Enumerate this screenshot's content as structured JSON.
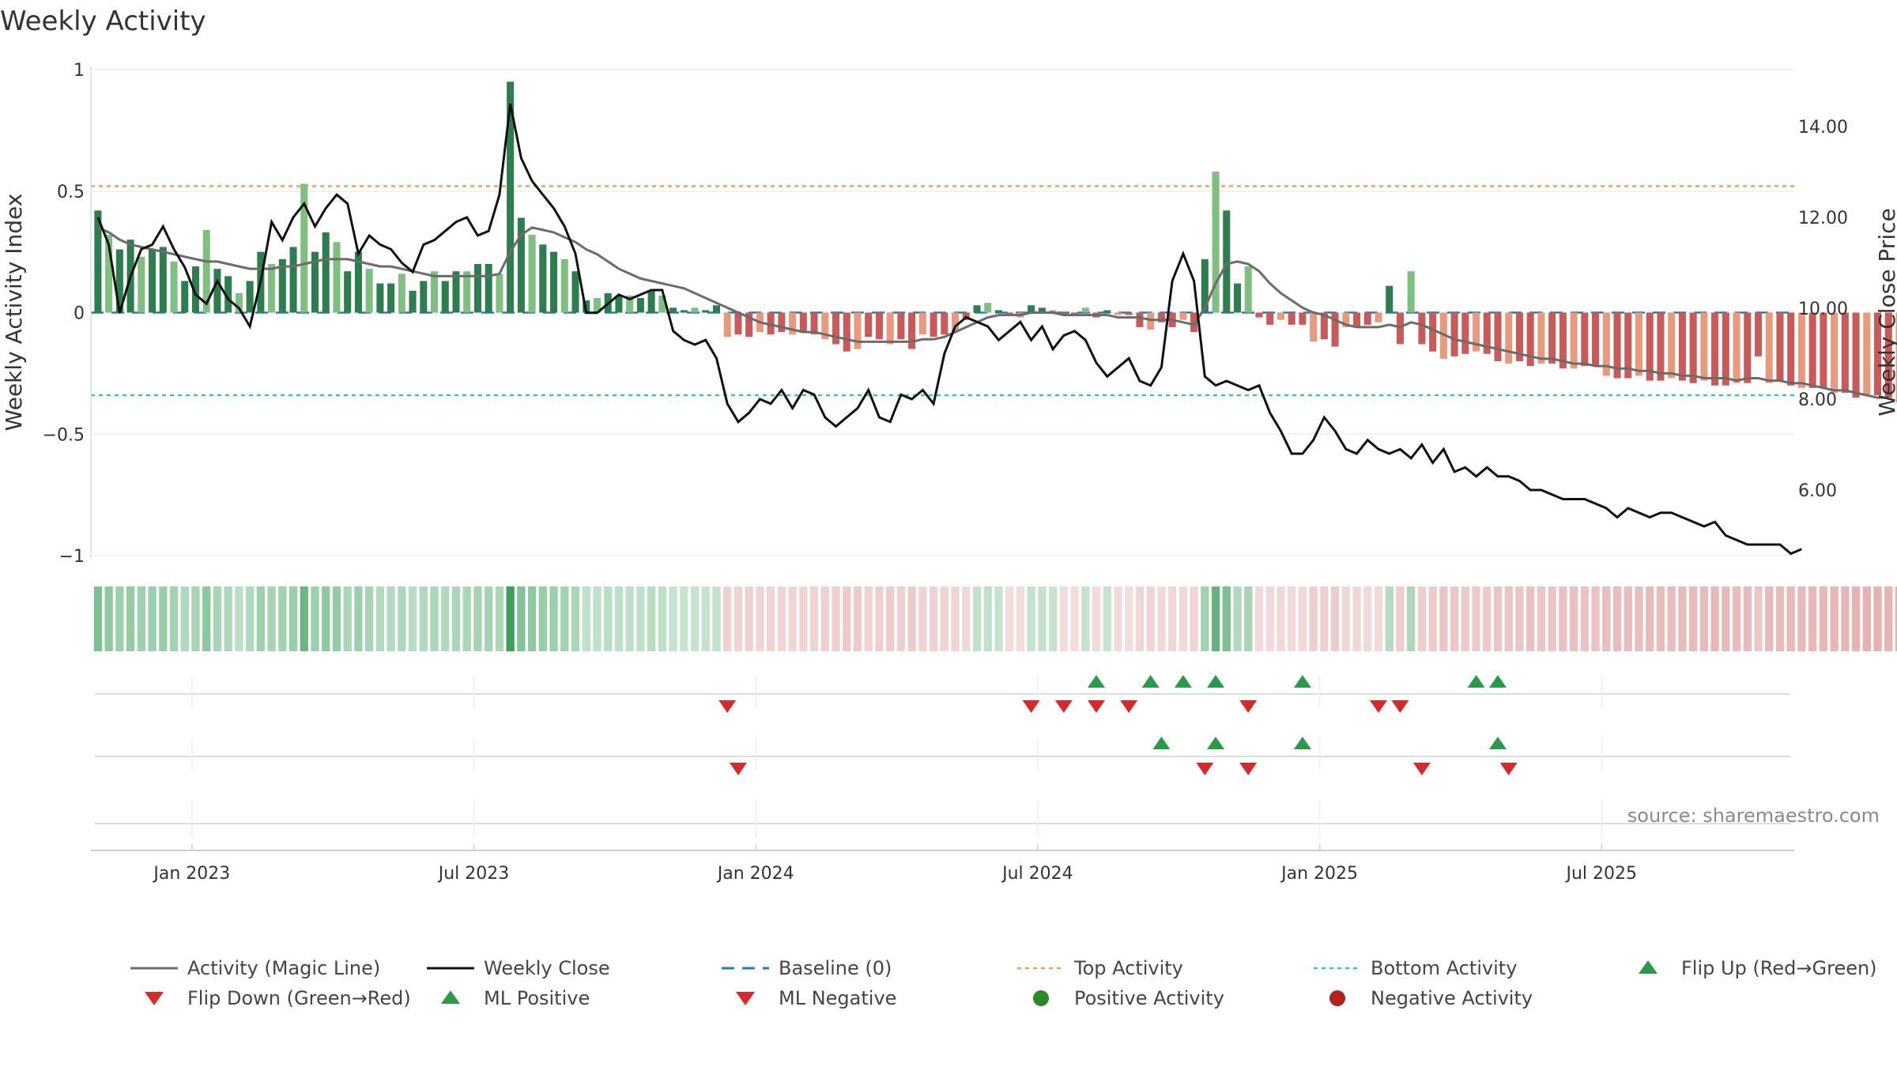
{
  "chart_data": {
    "type": "bar",
    "title": "Weekly Activity",
    "ylabel_left": "Weekly Activity Index",
    "ylabel_right": "Weekly Close Price",
    "ylim_left": [
      -1,
      1
    ],
    "ylim_right": [
      4.5,
      15.25
    ],
    "yticks_left": [
      1,
      0.5,
      0,
      -0.5,
      -1
    ],
    "yticks_left_labels": [
      "1",
      "0.5",
      "0",
      "−0.5",
      "−1"
    ],
    "yticks_right": [
      14,
      12,
      10,
      8,
      6
    ],
    "yticks_right_labels": [
      "14.00",
      "12.00",
      "10.00",
      "8.00",
      "6.00"
    ],
    "x_range_months": [
      -2.15,
      34.1
    ],
    "x_ticks": [
      {
        "label": "Jan 2023",
        "m": 0
      },
      {
        "label": "Jul 2023",
        "m": 6
      },
      {
        "label": "Jan 2024",
        "m": 12
      },
      {
        "label": "Jul 2024",
        "m": 18
      },
      {
        "label": "Jan 2025",
        "m": 24
      },
      {
        "label": "Jul 2025",
        "m": 30
      }
    ],
    "week_start_month": -2.0,
    "weeks_per_month": 4.33,
    "reference_lines": {
      "baseline": 0,
      "top_activity": 0.52,
      "bottom_activity": -0.34
    },
    "activity": [
      0.42,
      0.32,
      0.26,
      0.3,
      0.23,
      0.26,
      0.27,
      0.21,
      0.13,
      0.19,
      0.34,
      0.18,
      0.15,
      0.08,
      0.13,
      0.25,
      0.2,
      0.22,
      0.27,
      0.53,
      0.25,
      0.33,
      0.29,
      0.17,
      0.25,
      0.18,
      0.12,
      0.12,
      0.16,
      0.09,
      0.13,
      0.17,
      0.13,
      0.17,
      0.17,
      0.2,
      0.2,
      0.16,
      0.95,
      0.39,
      0.32,
      0.28,
      0.25,
      0.22,
      0.17,
      0.05,
      0.06,
      0.08,
      0.07,
      0.07,
      0.06,
      0.09,
      0.07,
      0.02,
      0.01,
      0.02,
      0.01,
      0.03,
      -0.1,
      -0.09,
      -0.1,
      -0.08,
      -0.09,
      -0.08,
      -0.09,
      -0.08,
      -0.09,
      -0.11,
      -0.13,
      -0.16,
      -0.15,
      -0.1,
      -0.11,
      -0.13,
      -0.11,
      -0.15,
      -0.09,
      -0.1,
      -0.09,
      -0.08,
      -0.03,
      0.03,
      0.04,
      0.01,
      -0.01,
      -0.02,
      0.03,
      0.02,
      0.01,
      -0.01,
      -0.01,
      0.02,
      -0.02,
      0.01,
      -0.01,
      -0.01,
      -0.06,
      -0.07,
      -0.04,
      -0.06,
      -0.03,
      -0.08,
      0.22,
      0.58,
      0.42,
      0.12,
      0.19,
      -0.02,
      -0.05,
      -0.03,
      -0.05,
      -0.05,
      -0.12,
      -0.11,
      -0.14,
      -0.06,
      -0.06,
      -0.05,
      -0.04,
      0.11,
      -0.13,
      0.17,
      -0.13,
      -0.16,
      -0.19,
      -0.18,
      -0.17,
      -0.16,
      -0.17,
      -0.2,
      -0.21,
      -0.2,
      -0.22,
      -0.21,
      -0.21,
      -0.23,
      -0.23,
      -0.22,
      -0.22,
      -0.26,
      -0.27,
      -0.27,
      -0.26,
      -0.28,
      -0.28,
      -0.27,
      -0.28,
      -0.29,
      -0.28,
      -0.3,
      -0.3,
      -0.29,
      -0.29,
      -0.18,
      -0.29,
      -0.28,
      -0.3,
      -0.31,
      -0.31,
      -0.31,
      -0.33,
      -0.33,
      -0.35,
      -0.34,
      -0.34,
      -0.35,
      -0.37
    ],
    "price": [
      12.0,
      11.4,
      9.9,
      10.7,
      11.3,
      11.4,
      11.8,
      11.3,
      10.9,
      10.3,
      10.1,
      10.6,
      10.2,
      10.0,
      9.6,
      10.6,
      11.9,
      11.5,
      12.0,
      12.3,
      11.8,
      12.2,
      12.5,
      12.3,
      11.2,
      11.6,
      11.4,
      11.3,
      11.0,
      10.8,
      11.4,
      11.5,
      11.7,
      11.9,
      12.0,
      11.6,
      11.7,
      12.5,
      14.5,
      13.3,
      12.8,
      12.5,
      12.2,
      11.8,
      11.2,
      9.9,
      9.9,
      10.1,
      10.3,
      10.2,
      10.3,
      10.4,
      10.4,
      9.5,
      9.3,
      9.2,
      9.3,
      8.9,
      7.9,
      7.5,
      7.7,
      8.0,
      7.9,
      8.2,
      7.8,
      8.2,
      8.1,
      7.6,
      7.4,
      7.6,
      7.8,
      8.2,
      7.6,
      7.5,
      8.1,
      8.0,
      8.2,
      7.9,
      9.0,
      9.6,
      9.8,
      9.7,
      9.6,
      9.3,
      9.5,
      9.7,
      9.3,
      9.6,
      9.1,
      9.4,
      9.5,
      9.3,
      8.8,
      8.5,
      8.7,
      8.9,
      8.4,
      8.3,
      8.7,
      10.6,
      11.2,
      10.6,
      8.5,
      8.3,
      8.4,
      8.3,
      8.2,
      8.3,
      7.7,
      7.3,
      6.8,
      6.8,
      7.1,
      7.6,
      7.3,
      6.9,
      6.8,
      7.1,
      6.9,
      6.8,
      6.9,
      6.7,
      7.0,
      6.6,
      6.9,
      6.4,
      6.5,
      6.3,
      6.5,
      6.3,
      6.3,
      6.2,
      6.0,
      6.0,
      5.9,
      5.8,
      5.8,
      5.8,
      5.7,
      5.6,
      5.4,
      5.6,
      5.5,
      5.4,
      5.5,
      5.5,
      5.4,
      5.3,
      5.2,
      5.3,
      5.0,
      4.9,
      4.8,
      4.8,
      4.8,
      4.8,
      4.6,
      4.7
    ],
    "magic_line": [
      0.35,
      0.33,
      0.3,
      0.28,
      0.27,
      0.26,
      0.25,
      0.24,
      0.23,
      0.22,
      0.21,
      0.21,
      0.2,
      0.19,
      0.18,
      0.18,
      0.18,
      0.19,
      0.19,
      0.2,
      0.21,
      0.22,
      0.22,
      0.22,
      0.21,
      0.2,
      0.19,
      0.19,
      0.18,
      0.17,
      0.16,
      0.15,
      0.15,
      0.15,
      0.15,
      0.15,
      0.15,
      0.16,
      0.25,
      0.32,
      0.35,
      0.34,
      0.33,
      0.31,
      0.29,
      0.26,
      0.24,
      0.21,
      0.18,
      0.16,
      0.14,
      0.13,
      0.12,
      0.11,
      0.1,
      0.08,
      0.06,
      0.04,
      0.02,
      0.0,
      -0.02,
      -0.04,
      -0.05,
      -0.06,
      -0.07,
      -0.08,
      -0.08,
      -0.09,
      -0.1,
      -0.11,
      -0.12,
      -0.12,
      -0.12,
      -0.12,
      -0.12,
      -0.12,
      -0.11,
      -0.11,
      -0.1,
      -0.08,
      -0.06,
      -0.04,
      -0.02,
      -0.01,
      -0.01,
      -0.01,
      0.0,
      0.0,
      0.0,
      -0.01,
      -0.01,
      -0.01,
      -0.01,
      -0.01,
      -0.02,
      -0.02,
      -0.02,
      -0.03,
      -0.03,
      -0.03,
      -0.04,
      -0.05,
      0.02,
      0.12,
      0.2,
      0.21,
      0.2,
      0.17,
      0.12,
      0.08,
      0.05,
      0.02,
      0.0,
      -0.01,
      -0.03,
      -0.05,
      -0.06,
      -0.06,
      -0.06,
      -0.05,
      -0.06,
      -0.04,
      -0.05,
      -0.07,
      -0.09,
      -0.11,
      -0.12,
      -0.13,
      -0.14,
      -0.15,
      -0.16,
      -0.17,
      -0.18,
      -0.19,
      -0.19,
      -0.2,
      -0.21,
      -0.21,
      -0.22,
      -0.22,
      -0.23,
      -0.23,
      -0.24,
      -0.24,
      -0.25,
      -0.25,
      -0.26,
      -0.26,
      -0.27,
      -0.27,
      -0.27,
      -0.28,
      -0.27,
      -0.27,
      -0.28,
      -0.28,
      -0.29,
      -0.29,
      -0.3,
      -0.31,
      -0.32,
      -0.32,
      -0.33,
      -0.34,
      -0.35,
      -0.35
    ],
    "signal_rows": [
      {
        "name": "Flip Up (Red→Green)",
        "kind": "up",
        "weeks": [
          92,
          97,
          100,
          103,
          111,
          127,
          129
        ]
      },
      {
        "name": "Flip Down (Green→Red)",
        "kind": "down",
        "weeks": [
          58,
          86,
          89,
          92,
          95,
          106,
          118,
          120
        ]
      },
      {
        "name": "ML Positive",
        "kind": "up",
        "weeks": [
          98,
          103,
          111,
          129
        ]
      },
      {
        "name": "ML Negative",
        "kind": "down",
        "weeks": [
          59,
          102,
          106,
          122,
          130
        ]
      }
    ],
    "source": "source: sharemaestro.com",
    "legend": [
      {
        "label": "Activity (Magic Line)",
        "kind": "line",
        "color": "#6b6b6b"
      },
      {
        "label": "Weekly Close",
        "kind": "line",
        "color": "#111111"
      },
      {
        "label": "Baseline (0)",
        "kind": "dash",
        "color": "#2a7ab5"
      },
      {
        "label": "Top Activity",
        "kind": "dot",
        "color": "#e8a050"
      },
      {
        "label": "Bottom Activity",
        "kind": "dot",
        "color": "#2ec4c4"
      },
      {
        "label": "Flip Up (Red→Green)",
        "kind": "tri-up",
        "color": "#2a9a4a"
      },
      {
        "label": "Flip Down (Green→Red)",
        "kind": "tri-down",
        "color": "#d62a2a"
      },
      {
        "label": "ML Positive",
        "kind": "tri-up",
        "color": "#2a9a4a"
      },
      {
        "label": "ML Negative",
        "kind": "tri-down",
        "color": "#d62a2a"
      },
      {
        "label": "Positive Activity",
        "kind": "circle",
        "color": "#2a8a2a"
      },
      {
        "label": "Negative Activity",
        "kind": "circle",
        "color": "#b02020"
      }
    ],
    "colors": {
      "pos_dark": "#2e7d4f",
      "pos_light": "#7fbf7f",
      "neg_dark": "#c95a5a",
      "neg_light": "#e89a7e",
      "magic": "#6b6b6b",
      "price": "#111111",
      "baseline": "#2a7ab5",
      "top": "#e8a050",
      "bottom": "#2ec4c4",
      "up": "#2a9a4a",
      "down": "#d62a2a"
    }
  }
}
